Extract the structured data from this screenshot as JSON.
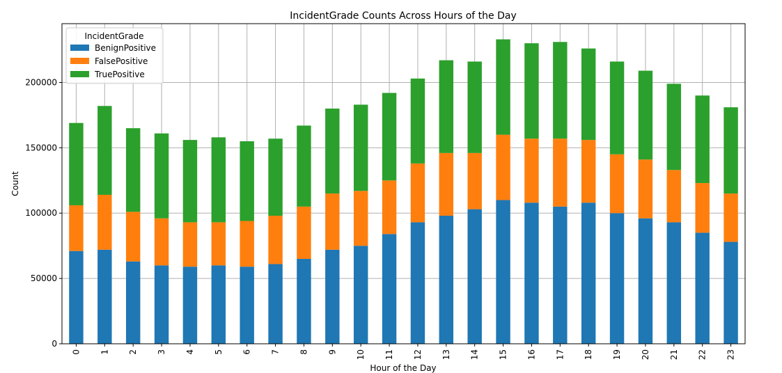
{
  "chart_data": {
    "type": "bar",
    "stacked": true,
    "title": "IncidentGrade Counts Across Hours of the Day",
    "xlabel": "Hour of the Day",
    "ylabel": "Count",
    "ylim": [
      0,
      245000
    ],
    "yticks": [
      0,
      50000,
      100000,
      150000,
      200000
    ],
    "grid": true,
    "legend_title": "IncidentGrade",
    "legend_position": "top-left",
    "categories": [
      "0",
      "1",
      "2",
      "3",
      "4",
      "5",
      "6",
      "7",
      "8",
      "9",
      "10",
      "11",
      "12",
      "13",
      "14",
      "15",
      "16",
      "17",
      "18",
      "19",
      "20",
      "21",
      "22",
      "23"
    ],
    "series": [
      {
        "name": "BenignPositive",
        "color": "#1f77b4",
        "values": [
          71000,
          72000,
          63000,
          60000,
          59000,
          60000,
          59000,
          61000,
          65000,
          72000,
          75000,
          84000,
          93000,
          98000,
          103000,
          110000,
          108000,
          105000,
          108000,
          100000,
          96000,
          93000,
          85000,
          78000
        ]
      },
      {
        "name": "FalsePositive",
        "color": "#ff7f0e",
        "values": [
          35000,
          42000,
          38000,
          36000,
          34000,
          33000,
          35000,
          37000,
          40000,
          43000,
          42000,
          41000,
          45000,
          48000,
          43000,
          50000,
          49000,
          52000,
          48000,
          45000,
          45000,
          40000,
          38000,
          37000
        ]
      },
      {
        "name": "TruePositive",
        "color": "#2ca02c",
        "values": [
          63000,
          68000,
          64000,
          65000,
          63000,
          65000,
          61000,
          59000,
          62000,
          65000,
          66000,
          67000,
          65000,
          71000,
          70000,
          73000,
          73000,
          74000,
          70000,
          71000,
          68000,
          66000,
          67000,
          66000
        ]
      }
    ]
  }
}
